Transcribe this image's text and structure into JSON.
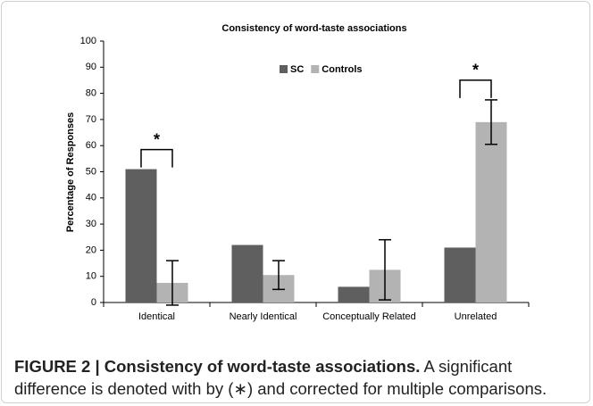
{
  "chart_data": {
    "type": "bar",
    "title": "Consistency of word-taste associations",
    "ylabel": "Percentage of Responses",
    "categories": [
      "Identical",
      "Nearly Identical",
      "Conceptually Related",
      "Unrelated"
    ],
    "series": [
      {
        "name": "SC",
        "color": "#5f5f5f",
        "values": [
          51,
          22,
          6,
          21
        ]
      },
      {
        "name": "Controls",
        "color": "#b3b3b3",
        "values": [
          7.5,
          10.5,
          12.5,
          69
        ],
        "errors": [
          8.5,
          5.5,
          11.5,
          8.5
        ]
      }
    ],
    "ylim": [
      0,
      100
    ],
    "yticks": [
      0,
      10,
      20,
      30,
      40,
      50,
      60,
      70,
      80,
      90,
      100
    ],
    "legend": "top",
    "annotations": [
      "*",
      "*"
    ]
  },
  "caption": {
    "label": "FIGURE 2 | Consistency of word-taste associations.",
    "text": "A significant difference is denoted with by (∗) and corrected for multiple comparisons."
  }
}
